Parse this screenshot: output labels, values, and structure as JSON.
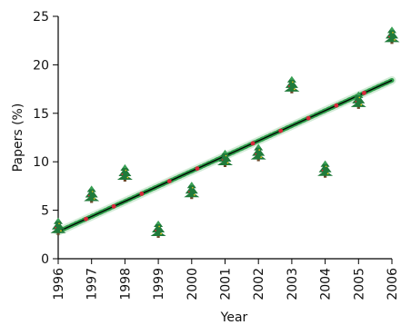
{
  "chart_data": {
    "type": "scatter",
    "xlabel": "Year",
    "ylabel": "Papers (%)",
    "xlim": [
      1996,
      2006
    ],
    "ylim": [
      0,
      25
    ],
    "x_ticks": [
      "1996",
      "1997",
      "1998",
      "1999",
      "2000",
      "2001",
      "2002",
      "2003",
      "2004",
      "2005",
      "2006"
    ],
    "y_ticks": [
      "0",
      "5",
      "10",
      "15",
      "20",
      "25"
    ],
    "grid": false,
    "legend": "none",
    "marker_icon": "christmas-tree-icon",
    "series": [
      {
        "type": "scatter",
        "x": [
          1996,
          1997,
          1998,
          1999,
          2000,
          2001,
          2002,
          2003,
          2004,
          2005,
          2006
        ],
        "y": [
          3.3,
          6.6,
          8.8,
          3.0,
          7.0,
          10.3,
          10.9,
          17.9,
          9.2,
          16.3,
          23.0
        ],
        "color": "#1f7a3a"
      },
      {
        "type": "line",
        "x": [
          1996,
          2006
        ],
        "y": [
          2.8,
          18.4
        ],
        "color": "#000000",
        "garland_color": "#2e9e4a",
        "ornament_color": "#d9263a"
      }
    ]
  }
}
